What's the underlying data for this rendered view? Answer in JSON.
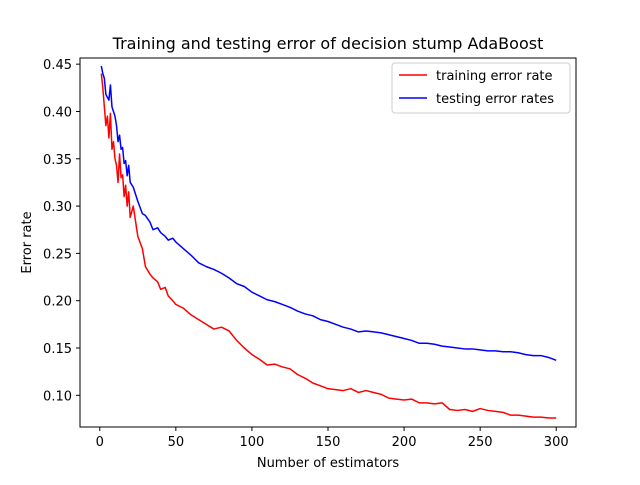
{
  "chart_data": {
    "type": "line",
    "title": "Training and testing error of decision stump AdaBoost",
    "xlabel": "Number of estimators",
    "ylabel": "Error rate",
    "xlim": [
      -13,
      313
    ],
    "ylim": [
      0.0665,
      0.4565
    ],
    "xticks": [
      0,
      50,
      100,
      150,
      200,
      250,
      300
    ],
    "yticks": [
      0.1,
      0.15,
      0.2,
      0.25,
      0.3,
      0.35,
      0.4,
      0.45
    ],
    "xtick_labels": [
      "0",
      "50",
      "100",
      "150",
      "200",
      "250",
      "300"
    ],
    "ytick_labels": [
      "0.10",
      "0.15",
      "0.20",
      "0.25",
      "0.30",
      "0.35",
      "0.40",
      "0.45"
    ],
    "grid": false,
    "legend_position": "top-right",
    "series": [
      {
        "name": "training error rate",
        "color": "#ff0000",
        "x": [
          1,
          2,
          3,
          4,
          5,
          6,
          7,
          8,
          9,
          10,
          11,
          12,
          13,
          14,
          15,
          16,
          17,
          18,
          19,
          20,
          22,
          25,
          28,
          30,
          33,
          35,
          38,
          40,
          43,
          45,
          48,
          50,
          55,
          60,
          65,
          70,
          75,
          80,
          85,
          90,
          95,
          100,
          105,
          110,
          115,
          120,
          125,
          130,
          135,
          140,
          145,
          150,
          155,
          160,
          165,
          170,
          175,
          180,
          185,
          190,
          195,
          200,
          205,
          210,
          215,
          220,
          225,
          230,
          235,
          240,
          245,
          250,
          255,
          260,
          265,
          270,
          275,
          280,
          285,
          290,
          295,
          300
        ],
        "y": [
          0.44,
          0.425,
          0.405,
          0.385,
          0.395,
          0.372,
          0.398,
          0.36,
          0.368,
          0.35,
          0.343,
          0.325,
          0.355,
          0.33,
          0.333,
          0.31,
          0.322,
          0.3,
          0.315,
          0.288,
          0.3,
          0.268,
          0.255,
          0.236,
          0.228,
          0.224,
          0.22,
          0.212,
          0.214,
          0.205,
          0.2,
          0.196,
          0.192,
          0.185,
          0.18,
          0.175,
          0.17,
          0.172,
          0.168,
          0.158,
          0.15,
          0.143,
          0.138,
          0.132,
          0.133,
          0.13,
          0.128,
          0.122,
          0.118,
          0.113,
          0.11,
          0.107,
          0.106,
          0.105,
          0.107,
          0.103,
          0.105,
          0.103,
          0.101,
          0.097,
          0.096,
          0.095,
          0.096,
          0.092,
          0.092,
          0.091,
          0.092,
          0.085,
          0.084,
          0.085,
          0.083,
          0.086,
          0.084,
          0.083,
          0.082,
          0.079,
          0.079,
          0.078,
          0.077,
          0.077,
          0.076,
          0.076
        ]
      },
      {
        "name": "testing error rates",
        "color": "#0000ff",
        "x": [
          1,
          2,
          3,
          4,
          5,
          6,
          7,
          8,
          9,
          10,
          11,
          12,
          13,
          14,
          15,
          16,
          17,
          18,
          19,
          20,
          22,
          25,
          28,
          30,
          33,
          35,
          38,
          40,
          43,
          45,
          48,
          50,
          55,
          60,
          65,
          70,
          75,
          80,
          85,
          90,
          95,
          100,
          105,
          110,
          115,
          120,
          125,
          130,
          135,
          140,
          145,
          150,
          155,
          160,
          165,
          170,
          175,
          180,
          185,
          190,
          195,
          200,
          205,
          210,
          215,
          220,
          225,
          230,
          235,
          240,
          245,
          250,
          255,
          260,
          265,
          270,
          275,
          280,
          285,
          290,
          295,
          300
        ],
        "y": [
          0.448,
          0.44,
          0.435,
          0.418,
          0.415,
          0.412,
          0.428,
          0.405,
          0.4,
          0.395,
          0.385,
          0.368,
          0.375,
          0.36,
          0.362,
          0.345,
          0.348,
          0.332,
          0.343,
          0.325,
          0.32,
          0.305,
          0.292,
          0.29,
          0.283,
          0.275,
          0.277,
          0.272,
          0.268,
          0.264,
          0.266,
          0.262,
          0.255,
          0.248,
          0.24,
          0.236,
          0.233,
          0.229,
          0.224,
          0.218,
          0.215,
          0.209,
          0.205,
          0.201,
          0.199,
          0.196,
          0.193,
          0.189,
          0.186,
          0.184,
          0.18,
          0.178,
          0.175,
          0.172,
          0.17,
          0.167,
          0.168,
          0.167,
          0.166,
          0.164,
          0.162,
          0.16,
          0.158,
          0.155,
          0.155,
          0.154,
          0.152,
          0.151,
          0.15,
          0.149,
          0.149,
          0.148,
          0.147,
          0.147,
          0.146,
          0.146,
          0.145,
          0.143,
          0.142,
          0.142,
          0.14,
          0.137
        ]
      }
    ]
  }
}
